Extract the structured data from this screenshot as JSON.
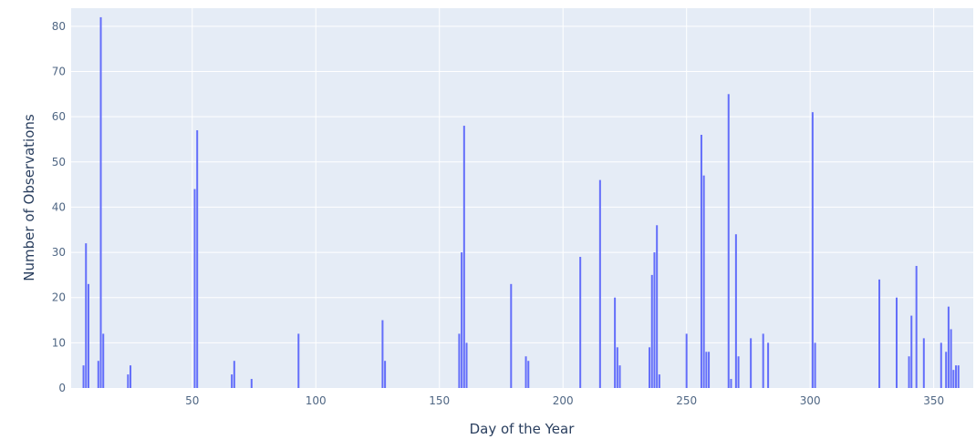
{
  "chart_data": {
    "type": "bar",
    "title": "",
    "xlabel": "Day of the Year",
    "ylabel": "Number of Observations",
    "xlim": [
      1,
      366
    ],
    "ylim": [
      0,
      84
    ],
    "xticks": [
      50,
      100,
      150,
      200,
      250,
      300,
      350
    ],
    "yticks": [
      0,
      10,
      20,
      30,
      40,
      50,
      60,
      70,
      80
    ],
    "grid": true,
    "colors": {
      "bar": "#636efa",
      "plot_bg": "#e5ecf6",
      "grid": "#ffffff"
    },
    "x": [
      6,
      7,
      8,
      12,
      13,
      14,
      24,
      25,
      51,
      52,
      66,
      67,
      74,
      93,
      127,
      128,
      158,
      159,
      160,
      161,
      179,
      185,
      186,
      207,
      215,
      221,
      222,
      223,
      235,
      236,
      237,
      238,
      239,
      250,
      256,
      257,
      258,
      259,
      267,
      268,
      270,
      271,
      276,
      281,
      283,
      301,
      302,
      328,
      335,
      340,
      341,
      343,
      346,
      353,
      355,
      356,
      357,
      358,
      359,
      360
    ],
    "values": [
      5,
      32,
      23,
      6,
      82,
      12,
      3,
      5,
      44,
      57,
      3,
      6,
      2,
      12,
      15,
      6,
      12,
      30,
      58,
      10,
      23,
      7,
      6,
      29,
      46,
      20,
      9,
      5,
      9,
      25,
      30,
      36,
      3,
      12,
      56,
      47,
      8,
      8,
      65,
      2,
      34,
      7,
      11,
      12,
      10,
      61,
      10,
      24,
      20,
      7,
      16,
      27,
      11,
      10,
      8,
      18,
      13,
      4,
      5,
      5
    ]
  }
}
